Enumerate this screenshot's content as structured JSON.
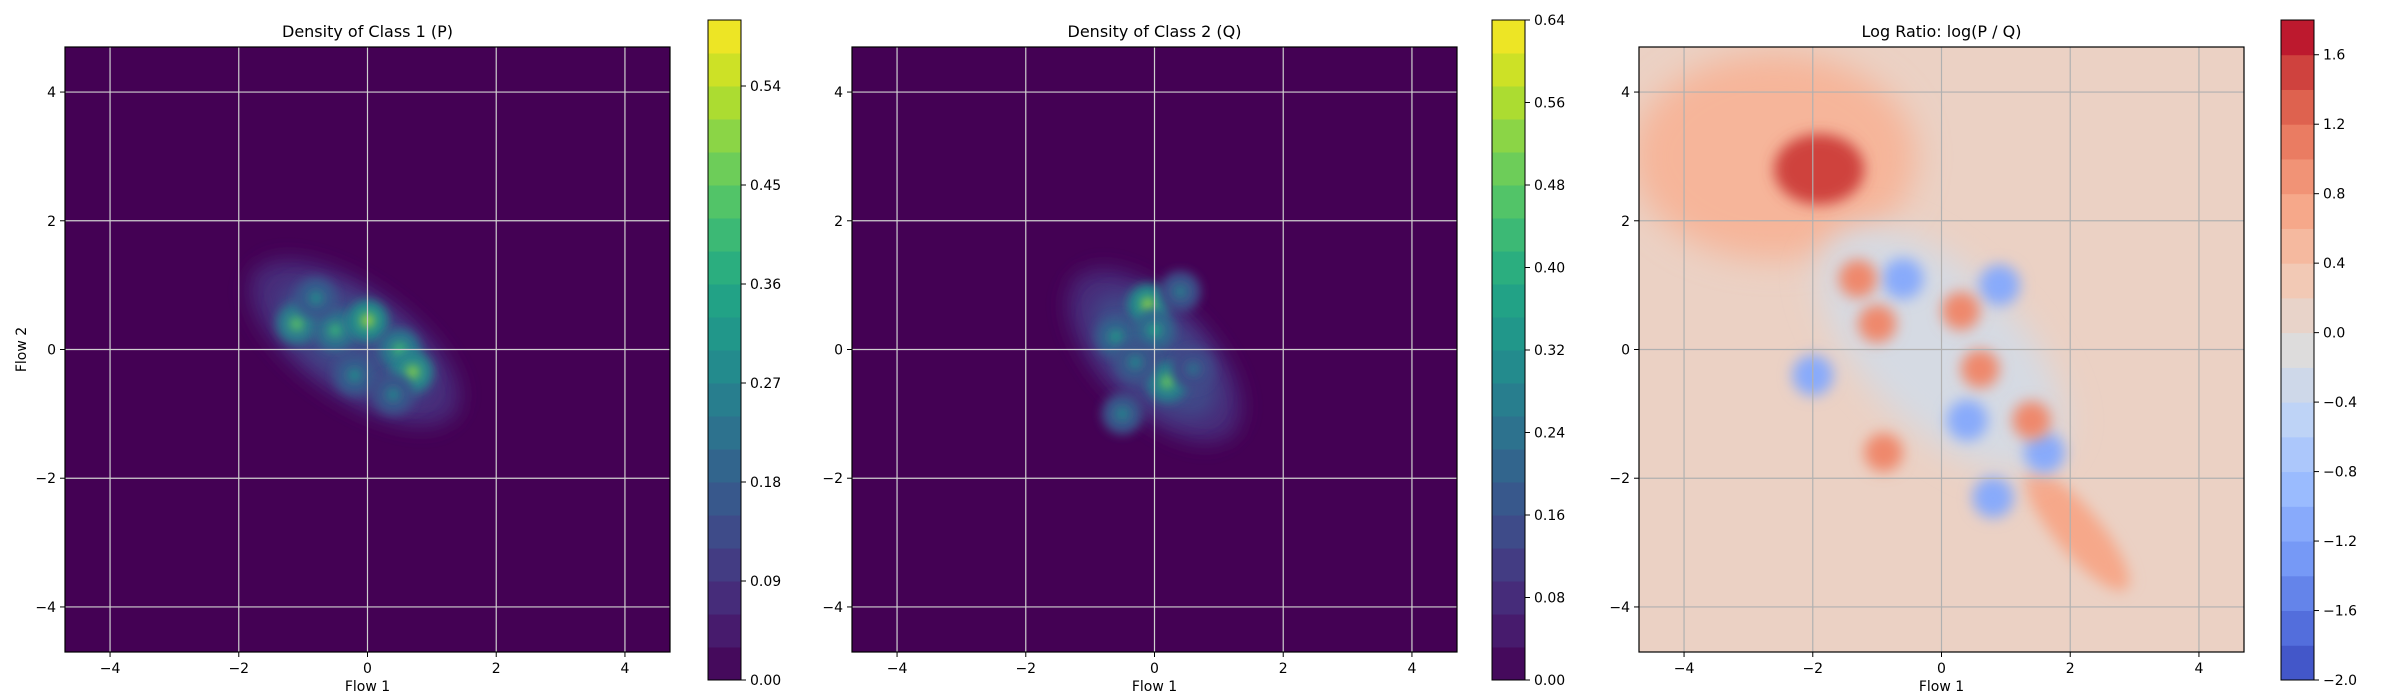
{
  "chart_data": [
    {
      "type": "heatmap",
      "title": "Density of Class 1 (P)",
      "xlabel": "Flow 1",
      "ylabel": "Flow 2",
      "xlim": [
        -4.7,
        4.7
      ],
      "ylim": [
        -4.7,
        4.7
      ],
      "xticks": [
        -4,
        -2,
        0,
        2,
        4
      ],
      "yticks": [
        -4,
        -2,
        0,
        2,
        4
      ],
      "grid": true,
      "colormap": "viridis",
      "colorbar": {
        "range": [
          0.0,
          0.6
        ],
        "ticks": [
          0.0,
          0.09,
          0.18,
          0.27,
          0.36,
          0.45,
          0.54
        ],
        "tick_labels": [
          "0.00",
          "0.09",
          "0.18",
          "0.27",
          "0.36",
          "0.45",
          "0.54"
        ]
      },
      "density": {
        "background_color": "#440154",
        "blob_center": [
          -0.2,
          0.1
        ],
        "blob_spread": [
          1.9,
          0.85
        ],
        "blob_angle_deg": -35,
        "peaks": [
          [
            -1.1,
            0.4,
            0.45
          ],
          [
            -0.5,
            0.3,
            0.4
          ],
          [
            0.0,
            0.45,
            0.52
          ],
          [
            0.5,
            0.0,
            0.42
          ],
          [
            0.7,
            -0.35,
            0.5
          ],
          [
            -0.2,
            -0.4,
            0.3
          ],
          [
            0.4,
            -0.7,
            0.28
          ],
          [
            -0.8,
            0.8,
            0.3
          ]
        ]
      }
    },
    {
      "type": "heatmap",
      "title": "Density of Class 2 (Q)",
      "xlabel": "Flow 1",
      "ylabel": "",
      "xlim": [
        -4.7,
        4.7
      ],
      "ylim": [
        -4.7,
        4.7
      ],
      "xticks": [
        -4,
        -2,
        0,
        2,
        4
      ],
      "yticks": [
        -4,
        -2,
        0,
        2,
        4
      ],
      "grid": true,
      "colormap": "viridis",
      "colorbar": {
        "range": [
          0.0,
          0.64
        ],
        "ticks": [
          0.0,
          0.08,
          0.16,
          0.24,
          0.32,
          0.4,
          0.48,
          0.56,
          0.64
        ],
        "tick_labels": [
          "0.00",
          "0.08",
          "0.16",
          "0.24",
          "0.32",
          "0.40",
          "0.48",
          "0.56",
          "0.64"
        ]
      },
      "density": {
        "background_color": "#440154",
        "blob_center": [
          0.0,
          -0.1
        ],
        "blob_spread": [
          1.7,
          0.85
        ],
        "blob_angle_deg": -45,
        "peaks": [
          [
            -0.1,
            0.7,
            0.55
          ],
          [
            -0.6,
            0.2,
            0.35
          ],
          [
            0.2,
            -0.5,
            0.5
          ],
          [
            0.0,
            0.3,
            0.38
          ],
          [
            -0.3,
            -0.2,
            0.3
          ],
          [
            0.4,
            0.9,
            0.28
          ],
          [
            -0.5,
            -1.0,
            0.3
          ],
          [
            0.6,
            -0.3,
            0.25
          ]
        ]
      }
    },
    {
      "type": "heatmap",
      "title": "Log Ratio: log(P / Q)",
      "xlabel": "Flow 1",
      "ylabel": "",
      "xlim": [
        -4.7,
        4.7
      ],
      "ylim": [
        -4.7,
        4.7
      ],
      "xticks": [
        -4,
        -2,
        0,
        2,
        4
      ],
      "yticks": [
        -4,
        -2,
        0,
        2,
        4
      ],
      "grid": true,
      "colormap": "coolwarm",
      "colorbar": {
        "range": [
          -2.0,
          1.8
        ],
        "ticks": [
          -2.0,
          -1.6,
          -1.2,
          -0.8,
          -0.4,
          0.0,
          0.4,
          0.8,
          1.2,
          1.6
        ],
        "tick_labels": [
          "−2.0",
          "−1.6",
          "−1.2",
          "−0.8",
          "−0.4",
          "0.0",
          "0.4",
          "0.8",
          "1.2",
          "1.6"
        ]
      },
      "ratio": {
        "upper_left_hotspot": [
          -1.9,
          2.8,
          1.5
        ],
        "lower_right_streak": [
          2.1,
          -2.8,
          0.7
        ],
        "positive_spots": [
          [
            -1.3,
            1.1
          ],
          [
            -1.0,
            0.4
          ],
          [
            0.3,
            0.6
          ],
          [
            0.6,
            -0.3
          ],
          [
            1.4,
            -1.1
          ],
          [
            -0.9,
            -1.6
          ]
        ],
        "negative_spots": [
          [
            -0.6,
            1.1
          ],
          [
            0.9,
            1.0
          ],
          [
            -2.0,
            -0.4
          ],
          [
            0.4,
            -1.1
          ],
          [
            1.6,
            -1.6
          ],
          [
            0.8,
            -2.3
          ]
        ]
      }
    }
  ]
}
